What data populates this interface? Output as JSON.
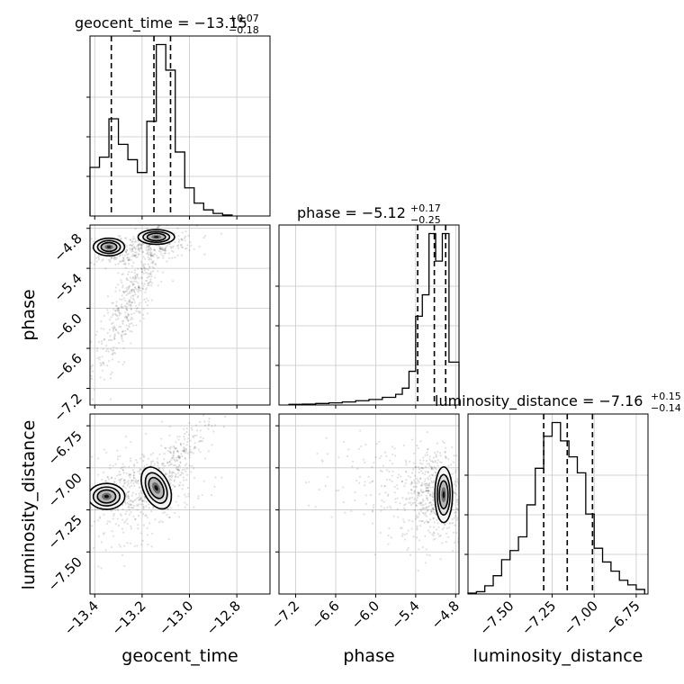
{
  "chart_data": {
    "type": "corner",
    "grid": true,
    "parameters": [
      {
        "name": "geocent_time",
        "title": {
          "prefix": "geocent_time = ",
          "value": "−13.15",
          "upper": "+0.07",
          "lower": "−0.18"
        },
        "range": [
          -13.42,
          -12.66
        ],
        "ticks": [
          -13.4,
          -13.2,
          -13.0,
          -12.8
        ],
        "tick_labels": [
          "−13.4",
          "−13.2",
          "−13.0",
          "−12.8"
        ],
        "quantiles": [
          -13.33,
          -13.15,
          -13.08
        ],
        "histogram": {
          "edges": [
            -13.42,
            -13.38,
            -13.34,
            -13.3,
            -13.26,
            -13.22,
            -13.18,
            -13.14,
            -13.1,
            -13.06,
            -13.02,
            -12.98,
            -12.94,
            -12.9,
            -12.86,
            -12.82
          ],
          "counts": [
            95,
            115,
            190,
            140,
            110,
            85,
            185,
            335,
            285,
            125,
            55,
            25,
            12,
            5,
            2
          ]
        }
      },
      {
        "name": "phase",
        "title": {
          "prefix": "phase = ",
          "value": "−5.12",
          "upper": "+0.17",
          "lower": "−0.25"
        },
        "range": [
          -7.45,
          -4.75
        ],
        "ticks": [
          -7.2,
          -6.6,
          -6.0,
          -5.4,
          -4.8
        ],
        "tick_labels": [
          "−7.2",
          "−6.6",
          "−6.0",
          "−5.4",
          "−4.8"
        ],
        "quantiles": [
          -5.37,
          -5.12,
          -4.95
        ],
        "histogram": {
          "edges": [
            -7.3,
            -7.1,
            -6.9,
            -6.7,
            -6.5,
            -6.3,
            -6.1,
            -5.9,
            -5.7,
            -5.6,
            -5.5,
            -5.4,
            -5.3,
            -5.2,
            -5.1,
            -5.0,
            -4.9,
            -4.75
          ],
          "counts": [
            2,
            3,
            5,
            7,
            10,
            14,
            18,
            25,
            35,
            55,
            110,
            290,
            360,
            560,
            470,
            560,
            140
          ]
        }
      },
      {
        "name": "luminosity_distance",
        "title": {
          "prefix": "luminosity_distance = ",
          "value": "−7.16",
          "upper": "+0.15",
          "lower": "−0.14"
        },
        "range": [
          -7.75,
          -6.68
        ],
        "ticks": [
          -7.5,
          -7.25,
          -7.0,
          -6.75
        ],
        "tick_labels": [
          "−7.50",
          "−7.25",
          "−7.00",
          "−6.75"
        ],
        "quantiles": [
          -7.3,
          -7.16,
          -7.01
        ],
        "histogram": {
          "edges": [
            -7.75,
            -7.7,
            -7.65,
            -7.6,
            -7.55,
            -7.5,
            -7.45,
            -7.4,
            -7.35,
            -7.3,
            -7.25,
            -7.2,
            -7.15,
            -7.1,
            -7.05,
            -7.0,
            -6.95,
            -6.9,
            -6.85,
            -6.8,
            -6.75,
            -6.7
          ],
          "counts": [
            2,
            5,
            18,
            40,
            75,
            95,
            125,
            195,
            275,
            345,
            375,
            335,
            300,
            265,
            175,
            100,
            70,
            50,
            30,
            20,
            10
          ]
        }
      }
    ]
  }
}
